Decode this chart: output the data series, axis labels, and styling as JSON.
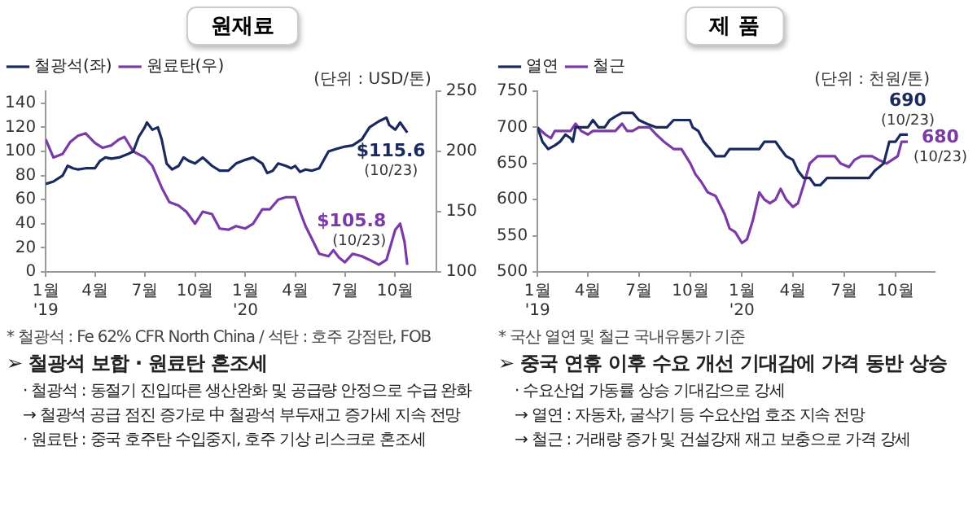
{
  "chart_data": [
    {
      "type": "line",
      "title": "원재료",
      "legend": "top left",
      "marker": "none",
      "grid": false,
      "xlim": [
        "2019-01-01",
        "2020-12-15"
      ],
      "xticks": [
        {
          "value": "2019-01-01",
          "label": "1월\n'19"
        },
        {
          "value": "2019-04-01",
          "label": "4월"
        },
        {
          "value": "2019-07-01",
          "label": "7월"
        },
        {
          "value": "2019-10-01",
          "label": "10월"
        },
        {
          "value": "2020-01-01",
          "label": "1월\n'20"
        },
        {
          "value": "2020-04-01",
          "label": "4월"
        },
        {
          "value": "2020-07-01",
          "label": "7월"
        },
        {
          "value": "2020-10-01",
          "label": "10월"
        }
      ],
      "ylim": [
        0,
        150
      ],
      "yticks": [
        0,
        20,
        40,
        60,
        80,
        100,
        120,
        140
      ],
      "y2lim": [
        100,
        250
      ],
      "y2ticks": [
        100,
        150,
        200,
        250
      ],
      "series": [
        {
          "name": "철광석(좌)",
          "color": "#1b2a5e",
          "x": [
            "2019-01-01",
            "2019-01-15",
            "2019-02-01",
            "2019-02-10",
            "2019-02-20",
            "2019-03-01",
            "2019-03-15",
            "2019-04-01",
            "2019-04-10",
            "2019-04-20",
            "2019-05-01",
            "2019-05-15",
            "2019-06-01",
            "2019-06-10",
            "2019-06-20",
            "2019-07-01",
            "2019-07-05",
            "2019-07-15",
            "2019-07-25",
            "2019-08-01",
            "2019-08-10",
            "2019-08-20",
            "2019-09-01",
            "2019-09-10",
            "2019-09-20",
            "2019-10-01",
            "2019-10-15",
            "2019-11-01",
            "2019-11-15",
            "2019-12-01",
            "2019-12-15",
            "2020-01-01",
            "2020-01-15",
            "2020-02-01",
            "2020-02-10",
            "2020-02-20",
            "2020-03-01",
            "2020-03-15",
            "2020-03-25",
            "2020-04-01",
            "2020-04-10",
            "2020-04-20",
            "2020-05-01",
            "2020-05-15",
            "2020-06-01",
            "2020-06-15",
            "2020-07-01",
            "2020-07-15",
            "2020-08-01",
            "2020-08-15",
            "2020-09-01",
            "2020-09-15",
            "2020-09-20",
            "2020-10-01",
            "2020-10-10",
            "2020-10-23"
          ],
          "values": [
            73,
            75,
            80,
            88,
            86,
            85,
            86,
            86,
            92,
            95,
            94,
            95,
            98,
            100,
            112,
            120,
            124,
            118,
            120,
            110,
            90,
            85,
            88,
            95,
            92,
            90,
            95,
            88,
            84,
            84,
            90,
            93,
            95,
            90,
            82,
            84,
            90,
            88,
            86,
            88,
            83,
            85,
            84,
            86,
            100,
            102,
            104,
            105,
            110,
            120,
            125,
            128,
            122,
            118,
            124,
            115.6
          ],
          "value_labels": [
            null,
            null,
            null,
            null,
            null,
            null,
            null,
            null,
            null,
            null,
            null,
            null,
            null,
            null,
            null,
            null,
            null,
            null,
            null,
            null,
            null,
            null,
            null,
            null,
            null,
            null,
            null,
            null,
            null,
            null,
            null,
            null,
            null,
            null,
            null,
            null,
            null,
            null,
            null,
            null,
            null,
            null,
            null,
            null,
            null,
            null,
            null,
            null,
            null,
            null,
            null,
            null,
            null,
            null,
            null,
            "$115.6\n(10/23)"
          ]
        },
        {
          "name": "원료탄(우)",
          "color": "#7a3aa8",
          "axis": "y2",
          "x": [
            "2019-01-01",
            "2019-01-15",
            "2019-02-01",
            "2019-02-15",
            "2019-03-01",
            "2019-03-15",
            "2019-04-01",
            "2019-04-15",
            "2019-05-01",
            "2019-05-15",
            "2019-05-25",
            "2019-06-10",
            "2019-07-01",
            "2019-07-15",
            "2019-08-01",
            "2019-08-15",
            "2019-09-01",
            "2019-09-15",
            "2019-10-01",
            "2019-10-15",
            "2019-11-01",
            "2019-11-15",
            "2019-12-01",
            "2019-12-15",
            "2020-01-01",
            "2020-01-15",
            "2020-02-01",
            "2020-02-15",
            "2020-03-01",
            "2020-03-15",
            "2020-04-01",
            "2020-04-10",
            "2020-04-20",
            "2020-05-01",
            "2020-05-15",
            "2020-06-01",
            "2020-06-10",
            "2020-06-20",
            "2020-07-01",
            "2020-07-15",
            "2020-08-01",
            "2020-08-15",
            "2020-09-01",
            "2020-09-15",
            "2020-10-01",
            "2020-10-10",
            "2020-10-18",
            "2020-10-23"
          ],
          "values": [
            210,
            195,
            198,
            208,
            213,
            215,
            207,
            203,
            205,
            210,
            212,
            200,
            195,
            188,
            170,
            158,
            155,
            150,
            140,
            150,
            148,
            136,
            135,
            138,
            136,
            140,
            152,
            152,
            160,
            162,
            162,
            150,
            138,
            128,
            115,
            113,
            118,
            112,
            108,
            115,
            113,
            110,
            106,
            110,
            135,
            140,
            125,
            105.8
          ],
          "value_labels": [
            null,
            null,
            null,
            null,
            null,
            null,
            null,
            null,
            null,
            null,
            null,
            null,
            null,
            null,
            null,
            null,
            null,
            null,
            null,
            null,
            null,
            null,
            null,
            null,
            null,
            null,
            null,
            null,
            null,
            null,
            null,
            null,
            null,
            null,
            null,
            null,
            null,
            null,
            null,
            null,
            null,
            null,
            null,
            null,
            null,
            null,
            null,
            "$105.8\n(10/23)"
          ]
        }
      ],
      "annotations": [
        "(단위 : USD/톤)",
        "* 철광석 : Fe 62% CFR North China / 석탄 : 호주 강점탄, FOB",
        "➢ 철광석 보합 · 원료탄 혼조세",
        "· 철광석 :  동절기 진입따른 생산완화 및 공급량 안정으로 수급 완화",
        "→ 철광석 공급 점진 증가로 中 철광석 부두재고 증가세 지속 전망",
        "· 원료탄 : 중국 호주탄 수입중지, 호주 기상 리스크로 혼조세"
      ]
    },
    {
      "type": "line",
      "title": "제 품",
      "legend": "top left",
      "marker": "none",
      "grid": false,
      "xlim": [
        "2019-01-01",
        "2020-12-10"
      ],
      "xticks": [
        {
          "value": "2019-01-01",
          "label": "1월\n'19"
        },
        {
          "value": "2019-04-01",
          "label": "4월"
        },
        {
          "value": "2019-07-01",
          "label": "7월"
        },
        {
          "value": "2019-10-01",
          "label": "10월"
        },
        {
          "value": "2020-01-01",
          "label": "1월\n'20"
        },
        {
          "value": "2020-04-01",
          "label": "4월"
        },
        {
          "value": "2020-07-01",
          "label": "7월"
        },
        {
          "value": "2020-10-01",
          "label": "10월"
        }
      ],
      "ylim": [
        500,
        750
      ],
      "yticks": [
        500,
        550,
        600,
        650,
        700,
        750
      ],
      "series": [
        {
          "name": "열연",
          "color": "#1b2a5e",
          "x": [
            "2019-01-01",
            "2019-01-10",
            "2019-01-20",
            "2019-02-01",
            "2019-02-10",
            "2019-02-20",
            "2019-03-01",
            "2019-03-05",
            "2019-03-10",
            "2019-04-01",
            "2019-04-10",
            "2019-04-20",
            "2019-05-01",
            "2019-05-10",
            "2019-05-20",
            "2019-06-01",
            "2019-06-20",
            "2019-07-01",
            "2019-07-15",
            "2019-08-01",
            "2019-08-20",
            "2019-09-01",
            "2019-09-30",
            "2019-10-05",
            "2019-10-15",
            "2019-10-25",
            "2019-11-05",
            "2019-11-15",
            "2019-12-01",
            "2019-12-10",
            "2020-01-01",
            "2020-02-01",
            "2020-02-10",
            "2020-03-01",
            "2020-03-10",
            "2020-03-20",
            "2020-04-01",
            "2020-04-10",
            "2020-04-20",
            "2020-05-01",
            "2020-05-10",
            "2020-05-20",
            "2020-06-01",
            "2020-07-01",
            "2020-08-15",
            "2020-08-25",
            "2020-09-10",
            "2020-09-20",
            "2020-10-01",
            "2020-10-10",
            "2020-10-23"
          ],
          "values": [
            700,
            680,
            670,
            675,
            680,
            690,
            685,
            680,
            700,
            700,
            710,
            700,
            700,
            710,
            715,
            720,
            720,
            710,
            705,
            700,
            700,
            710,
            710,
            700,
            695,
            680,
            670,
            660,
            660,
            670,
            670,
            670,
            680,
            680,
            670,
            660,
            655,
            640,
            630,
            630,
            620,
            620,
            630,
            630,
            630,
            640,
            650,
            680,
            680,
            690,
            690
          ],
          "value_labels": [
            null,
            null,
            null,
            null,
            null,
            null,
            null,
            null,
            null,
            null,
            null,
            null,
            null,
            null,
            null,
            null,
            null,
            null,
            null,
            null,
            null,
            null,
            null,
            null,
            null,
            null,
            null,
            null,
            null,
            null,
            null,
            null,
            null,
            null,
            null,
            null,
            null,
            null,
            null,
            null,
            null,
            null,
            null,
            null,
            null,
            null,
            null,
            null,
            null,
            null,
            "690\n(10/23)"
          ]
        },
        {
          "name": "철근",
          "color": "#7a3aa8",
          "x": [
            "2019-01-01",
            "2019-01-15",
            "2019-01-25",
            "2019-02-01",
            "2019-02-20",
            "2019-03-01",
            "2019-03-10",
            "2019-03-20",
            "2019-04-01",
            "2019-04-10",
            "2019-05-01",
            "2019-05-20",
            "2019-06-01",
            "2019-06-10",
            "2019-06-20",
            "2019-07-01",
            "2019-07-20",
            "2019-08-01",
            "2019-08-15",
            "2019-09-01",
            "2019-09-15",
            "2019-10-01",
            "2019-10-10",
            "2019-10-20",
            "2019-11-01",
            "2019-11-15",
            "2019-12-01",
            "2019-12-10",
            "2019-12-20",
            "2020-01-01",
            "2020-01-10",
            "2020-01-20",
            "2020-02-01",
            "2020-02-10",
            "2020-02-20",
            "2020-03-01",
            "2020-03-10",
            "2020-03-20",
            "2020-04-01",
            "2020-04-10",
            "2020-04-20",
            "2020-05-01",
            "2020-05-15",
            "2020-06-01",
            "2020-06-15",
            "2020-06-25",
            "2020-07-10",
            "2020-07-20",
            "2020-08-01",
            "2020-08-20",
            "2020-09-01",
            "2020-09-15",
            "2020-09-25",
            "2020-10-05",
            "2020-10-12",
            "2020-10-23"
          ],
          "values": [
            700,
            690,
            685,
            695,
            695,
            695,
            705,
            695,
            690,
            695,
            695,
            695,
            705,
            695,
            695,
            700,
            700,
            690,
            680,
            670,
            670,
            650,
            635,
            625,
            610,
            605,
            580,
            560,
            555,
            540,
            545,
            570,
            610,
            600,
            595,
            600,
            615,
            600,
            590,
            595,
            620,
            650,
            660,
            660,
            660,
            650,
            645,
            655,
            660,
            660,
            655,
            650,
            655,
            660,
            680,
            680
          ],
          "value_labels": [
            null,
            null,
            null,
            null,
            null,
            null,
            null,
            null,
            null,
            null,
            null,
            null,
            null,
            null,
            null,
            null,
            null,
            null,
            null,
            null,
            null,
            null,
            null,
            null,
            null,
            null,
            null,
            null,
            null,
            null,
            null,
            null,
            null,
            null,
            null,
            null,
            null,
            null,
            null,
            null,
            null,
            null,
            null,
            null,
            null,
            null,
            null,
            null,
            null,
            null,
            null,
            null,
            null,
            null,
            null,
            "680\n(10/23)"
          ]
        }
      ],
      "annotations": [
        "(단위 : 천원/톤)",
        "* 국산 열연 및 철근 국내유통가 기준",
        "➢ 중국 연휴 이후 수요 개선 기대감에 가격 동반 상승",
        "· 수요산업 가동률 상승 기대감으로 강세",
        "→ 열연 : 자동차, 굴삭기 등 수요산업 호조 지속 전망",
        "→ 철근 : 거래량 증가 및 건설강재 재고 보충으로 가격 강세"
      ]
    }
  ]
}
